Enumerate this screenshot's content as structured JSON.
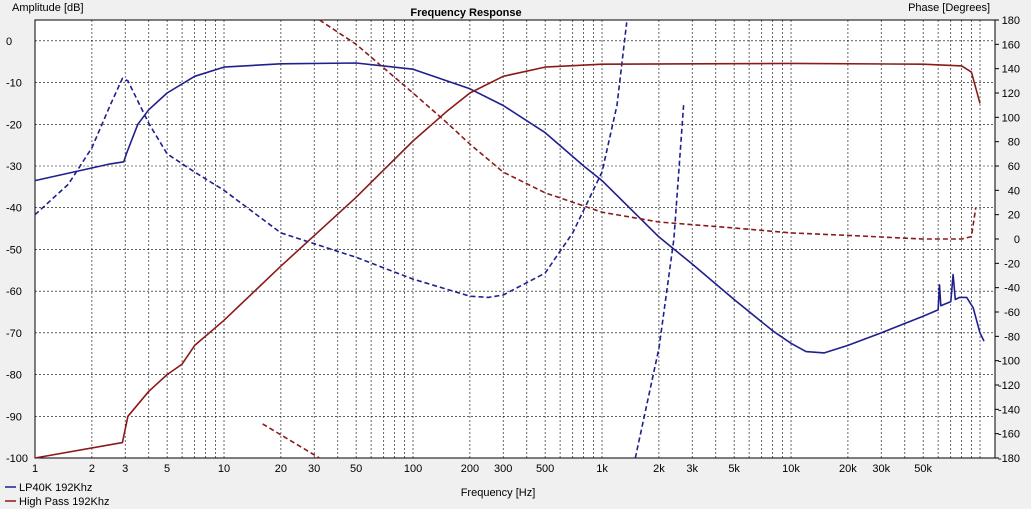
{
  "chart_data": {
    "type": "line",
    "title": "Frequency Response",
    "xlabel": "Frequency [Hz]",
    "ylabel_left": "Amplitude [dB]",
    "ylabel_right": "Phase [Degrees]",
    "xscale": "log",
    "xlim": [
      1,
      120000
    ],
    "ylim_left": [
      -100,
      5
    ],
    "ylim_right": [
      -180,
      180
    ],
    "grid": true,
    "legend_position": "bottom-left",
    "x_ticks": [
      {
        "v": 1,
        "label": "1"
      },
      {
        "v": 2,
        "label": "2"
      },
      {
        "v": 3,
        "label": "3"
      },
      {
        "v": 5,
        "label": "5"
      },
      {
        "v": 10,
        "label": "10"
      },
      {
        "v": 20,
        "label": "20"
      },
      {
        "v": 30,
        "label": "30"
      },
      {
        "v": 50,
        "label": "50"
      },
      {
        "v": 100,
        "label": "100"
      },
      {
        "v": 200,
        "label": "200"
      },
      {
        "v": 300,
        "label": "300"
      },
      {
        "v": 500,
        "label": "500"
      },
      {
        "v": 1000,
        "label": "1k"
      },
      {
        "v": 2000,
        "label": "2k"
      },
      {
        "v": 3000,
        "label": "3k"
      },
      {
        "v": 5000,
        "label": "5k"
      },
      {
        "v": 10000,
        "label": "10k"
      },
      {
        "v": 20000,
        "label": "20k"
      },
      {
        "v": 30000,
        "label": "30k"
      },
      {
        "v": 50000,
        "label": "50k"
      }
    ],
    "y_ticks_left": [
      0,
      -10,
      -20,
      -30,
      -40,
      -50,
      -60,
      -70,
      -80,
      -90,
      -100
    ],
    "y_ticks_right": [
      180,
      160,
      140,
      120,
      100,
      80,
      60,
      40,
      20,
      0,
      -20,
      -40,
      -60,
      -80,
      -100,
      -120,
      -140,
      -160,
      -180
    ],
    "series": [
      {
        "name": "LP40K 192Khz",
        "color": "#1f1f8f",
        "amplitude": [
          [
            1,
            -33.5
          ],
          [
            2.5,
            -29.5
          ],
          [
            2.95,
            -29
          ],
          [
            3.05,
            -27
          ],
          [
            3.5,
            -20
          ],
          [
            4,
            -16.5
          ],
          [
            5,
            -12.5
          ],
          [
            7,
            -8.5
          ],
          [
            10,
            -6.3
          ],
          [
            20,
            -5.5
          ],
          [
            50,
            -5.3
          ],
          [
            100,
            -6.8
          ],
          [
            200,
            -11.5
          ],
          [
            300,
            -15.5
          ],
          [
            500,
            -22
          ],
          [
            800,
            -30
          ],
          [
            1000,
            -33.5
          ],
          [
            2000,
            -47
          ],
          [
            3000,
            -53.5
          ],
          [
            5000,
            -62
          ],
          [
            8000,
            -69.5
          ],
          [
            10000,
            -72.5
          ],
          [
            12000,
            -74.5
          ],
          [
            15000,
            -74.8
          ],
          [
            20000,
            -73
          ],
          [
            30000,
            -70
          ],
          [
            50000,
            -66
          ],
          [
            60000,
            -64.5
          ],
          [
            61000,
            -58.5
          ],
          [
            62000,
            -63.5
          ],
          [
            70000,
            -62.5
          ],
          [
            72000,
            -56
          ],
          [
            74000,
            -62
          ],
          [
            78000,
            -61.5
          ],
          [
            85000,
            -61.5
          ],
          [
            92000,
            -64
          ],
          [
            100000,
            -70
          ],
          [
            105000,
            -72
          ]
        ],
        "phase": [
          [
            1,
            20
          ],
          [
            1.5,
            45
          ],
          [
            2,
            75
          ],
          [
            2.5,
            110
          ],
          [
            2.9,
            132
          ],
          [
            3.1,
            130
          ],
          [
            4,
            95
          ],
          [
            5,
            70
          ],
          [
            7,
            55
          ],
          [
            10,
            40
          ],
          [
            20,
            5
          ],
          [
            50,
            -15
          ],
          [
            100,
            -33
          ],
          [
            200,
            -47
          ],
          [
            250,
            -48
          ],
          [
            300,
            -46
          ],
          [
            500,
            -28
          ],
          [
            700,
            5
          ],
          [
            1000,
            55
          ],
          [
            1200,
            110
          ],
          [
            1350,
            178
          ]
        ],
        "phase_wrap": [
          [
            1500,
            -180
          ],
          [
            2000,
            -90
          ],
          [
            2400,
            0
          ],
          [
            2700,
            110
          ]
        ]
      },
      {
        "name": "High Pass 192Khz",
        "color": "#8b1a1a",
        "amplitude": [
          [
            1,
            -100
          ],
          [
            2.9,
            -96.3
          ],
          [
            3.1,
            -90
          ],
          [
            4,
            -84
          ],
          [
            5,
            -80
          ],
          [
            6,
            -77.5
          ],
          [
            7,
            -73
          ],
          [
            10,
            -67
          ],
          [
            20,
            -54
          ],
          [
            50,
            -37.5
          ],
          [
            100,
            -24
          ],
          [
            150,
            -17
          ],
          [
            200,
            -12.5
          ],
          [
            300,
            -8.5
          ],
          [
            500,
            -6.3
          ],
          [
            1000,
            -5.6
          ],
          [
            10000,
            -5.4
          ],
          [
            50000,
            -5.6
          ],
          [
            80000,
            -6
          ],
          [
            90000,
            -7.5
          ],
          [
            100000,
            -15
          ]
        ],
        "phase": [
          [
            32,
            180
          ],
          [
            50,
            160
          ],
          [
            100,
            120
          ],
          [
            150,
            96
          ],
          [
            200,
            78
          ],
          [
            300,
            55
          ],
          [
            500,
            38
          ],
          [
            1000,
            22
          ],
          [
            2000,
            14
          ],
          [
            5000,
            9
          ],
          [
            10000,
            5
          ],
          [
            20000,
            3
          ],
          [
            50000,
            0
          ],
          [
            80000,
            0
          ],
          [
            90000,
            2
          ],
          [
            95000,
            26
          ]
        ],
        "phase_wrap": [
          [
            16,
            -152
          ],
          [
            32,
            -180
          ]
        ]
      }
    ]
  }
}
